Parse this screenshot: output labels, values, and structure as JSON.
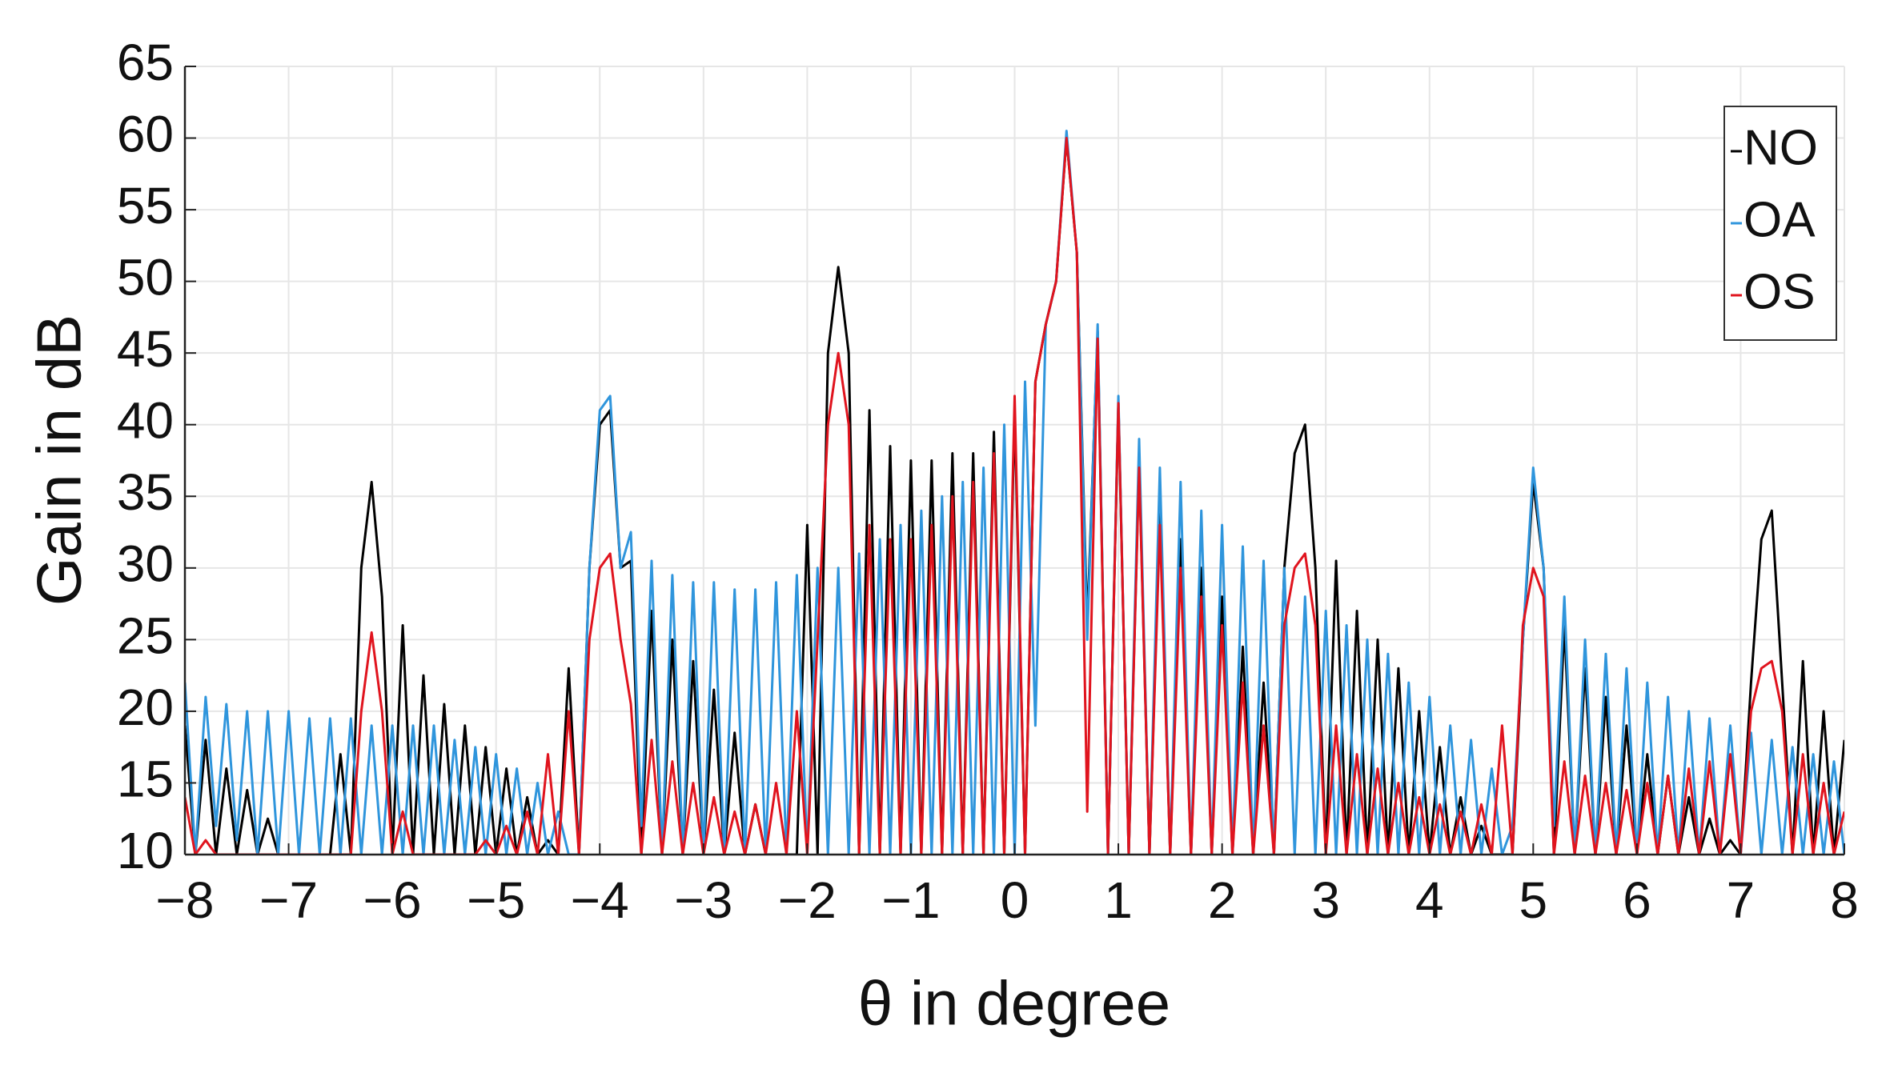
{
  "chart_data": {
    "type": "line",
    "xlabel": "θ in degree",
    "ylabel": "Gain in dB",
    "x": [
      -8.0,
      -7.9,
      -7.8,
      -7.7,
      -7.6,
      -7.5,
      -7.4,
      -7.3,
      -7.2,
      -7.1,
      -7.0,
      -6.9,
      -6.8,
      -6.7,
      -6.6,
      -6.5,
      -6.4,
      -6.3,
      -6.2,
      -6.1,
      -6.0,
      -5.9,
      -5.8,
      -5.7,
      -5.6,
      -5.5,
      -5.4,
      -5.3,
      -5.2,
      -5.1,
      -5.0,
      -4.9,
      -4.8,
      -4.7,
      -4.6,
      -4.5,
      -4.4,
      -4.3,
      -4.2,
      -4.1,
      -4.0,
      -3.9,
      -3.8,
      -3.7,
      -3.6,
      -3.5,
      -3.4,
      -3.3,
      -3.2,
      -3.1,
      -3.0,
      -2.9,
      -2.8,
      -2.7,
      -2.6,
      -2.5,
      -2.4,
      -2.3,
      -2.2,
      -2.1,
      -2.0,
      -1.9,
      -1.8,
      -1.7,
      -1.6,
      -1.5,
      -1.4,
      -1.3,
      -1.2,
      -1.1,
      -1.0,
      -0.9,
      -0.8,
      -0.7,
      -0.6,
      -0.5,
      -0.4,
      -0.3,
      -0.2,
      -0.1,
      0.0,
      0.1,
      0.2,
      0.3,
      0.4,
      0.5,
      0.6,
      0.7,
      0.8,
      0.9,
      1.0,
      1.1,
      1.2,
      1.3,
      1.4,
      1.5,
      1.6,
      1.7,
      1.8,
      1.9,
      2.0,
      2.1,
      2.2,
      2.3,
      2.4,
      2.5,
      2.6,
      2.7,
      2.8,
      2.9,
      3.0,
      3.1,
      3.2,
      3.3,
      3.4,
      3.5,
      3.6,
      3.7,
      3.8,
      3.9,
      4.0,
      4.1,
      4.2,
      4.3,
      4.4,
      4.5,
      4.6,
      4.7,
      4.8,
      4.9,
      5.0,
      5.1,
      5.2,
      5.3,
      5.4,
      5.5,
      5.6,
      5.7,
      5.8,
      5.9,
      6.0,
      6.1,
      6.2,
      6.3,
      6.4,
      6.5,
      6.6,
      6.7,
      6.8,
      6.9,
      7.0,
      7.1,
      7.2,
      7.3,
      7.4,
      7.5,
      7.6,
      7.7,
      7.8,
      7.9,
      8.0
    ],
    "series": [
      {
        "name": "NO",
        "color": "#000000",
        "values": [
          19,
          10,
          18,
          10,
          16,
          10,
          14.5,
          10,
          12.5,
          10,
          10,
          10,
          10,
          10,
          10,
          17,
          10,
          30,
          36,
          28,
          10,
          26,
          10,
          22.5,
          10,
          20.5,
          10,
          19,
          10,
          17.5,
          10,
          16,
          10,
          14,
          10,
          11,
          10,
          23,
          10,
          30,
          40,
          41,
          30,
          30.5,
          10,
          27,
          10,
          25,
          10,
          23.5,
          10,
          21.5,
          10,
          18.5,
          10,
          13.5,
          10,
          10,
          10,
          10,
          33,
          10,
          45,
          51,
          45,
          10,
          41,
          10,
          38.5,
          10,
          37.5,
          10,
          37.5,
          10,
          38,
          10,
          38,
          10,
          39.5,
          10,
          41,
          10,
          43,
          47,
          50,
          60,
          52,
          26,
          46.5,
          10,
          41.5,
          10,
          37.5,
          10,
          34,
          10,
          32,
          10,
          30,
          10,
          28,
          10,
          24.5,
          10,
          22,
          10,
          30,
          38,
          40,
          30,
          10,
          30.5,
          10,
          27,
          10,
          25,
          10,
          23,
          10,
          20,
          10,
          17.5,
          10,
          14,
          10,
          12,
          10,
          10,
          10,
          25,
          36,
          30,
          10,
          26,
          10,
          23,
          10,
          21,
          10,
          19,
          10,
          17,
          10,
          15.5,
          10,
          14,
          10,
          12.5,
          10,
          11,
          10,
          22,
          32,
          34,
          22,
          10,
          23.5,
          10,
          20,
          10,
          18
        ]
      },
      {
        "name": "OA",
        "color": "#2f95dc",
        "values": [
          22,
          10,
          21,
          12,
          20.5,
          11,
          20,
          10,
          20,
          10,
          20,
          10,
          19.5,
          10,
          19.5,
          10,
          19.5,
          10,
          19,
          10,
          19,
          10,
          19,
          10,
          19,
          10,
          18,
          10,
          17.5,
          10,
          17,
          10,
          16,
          10,
          15,
          10,
          13,
          10,
          10,
          30,
          41,
          42,
          30,
          32.5,
          12,
          30.5,
          10,
          29.5,
          10,
          29,
          10,
          29,
          10,
          28.5,
          10,
          28.5,
          10,
          29,
          10,
          29.5,
          10,
          30,
          10,
          30,
          10,
          31,
          10,
          32,
          10,
          33,
          10,
          34,
          10,
          35,
          10,
          36,
          10,
          37,
          10,
          40,
          10,
          43,
          19,
          47,
          50,
          60.5,
          52,
          25,
          47,
          10,
          42,
          10,
          39,
          10,
          37,
          10,
          36,
          10,
          34,
          10,
          33,
          10,
          31.5,
          10,
          30.5,
          10,
          30,
          10,
          28,
          10,
          27,
          10,
          26,
          10,
          25,
          10,
          24,
          10,
          22,
          10,
          21,
          10,
          19,
          10,
          18,
          10,
          16,
          10,
          12,
          25,
          37,
          30,
          12,
          28,
          10,
          25,
          10,
          24,
          10,
          23,
          10,
          22,
          10,
          21,
          10,
          20,
          10,
          19.5,
          10,
          19,
          10,
          18.5,
          10,
          18,
          10,
          17.5,
          10,
          17,
          10,
          16.5,
          10
        ]
      },
      {
        "name": "OS",
        "color": "#e0141e",
        "values": [
          14,
          10,
          11,
          10,
          10,
          10,
          10,
          10,
          10,
          10,
          10,
          10,
          10,
          10,
          10,
          10,
          10,
          20,
          25.5,
          20,
          10,
          13,
          10,
          10,
          10,
          10,
          10,
          10,
          10,
          11,
          10,
          12,
          10,
          13,
          10,
          17,
          10,
          20,
          10,
          25,
          30,
          31,
          25,
          20.5,
          10,
          18,
          10,
          16.5,
          10,
          15,
          10,
          14,
          10,
          13,
          10,
          13.5,
          10,
          15,
          10,
          20,
          10,
          25,
          40,
          45,
          40,
          10,
          33,
          10,
          32,
          10,
          32,
          10,
          33,
          10,
          35,
          10,
          36,
          10,
          38,
          10,
          42,
          10,
          43,
          47,
          50,
          60,
          52,
          13,
          46,
          10,
          41.5,
          10,
          37,
          10,
          33,
          10,
          30,
          10,
          28,
          10,
          26,
          10,
          22,
          10,
          19,
          10,
          26,
          30,
          31,
          26,
          10,
          19,
          10,
          17,
          10,
          16,
          10,
          15,
          10,
          14,
          10,
          13.5,
          10,
          13,
          10,
          13.5,
          10,
          19,
          10,
          26,
          30,
          28,
          10,
          16.5,
          10,
          15.5,
          10,
          15,
          10,
          14.5,
          10,
          15,
          10,
          15.5,
          10,
          16,
          10,
          16.5,
          10,
          17,
          10,
          20,
          23,
          23.5,
          20,
          10,
          17,
          10,
          15,
          10,
          13
        ]
      }
    ],
    "xlim": [
      -8,
      8
    ],
    "xticks": [
      {
        "value": -8,
        "label": "−8"
      },
      {
        "value": -7,
        "label": "−7"
      },
      {
        "value": -6,
        "label": "−6"
      },
      {
        "value": -5,
        "label": "−5"
      },
      {
        "value": -4,
        "label": "−4"
      },
      {
        "value": -3,
        "label": "−3"
      },
      {
        "value": -2,
        "label": "−2"
      },
      {
        "value": -1,
        "label": "−1"
      },
      0,
      1,
      2,
      3,
      4,
      5,
      6,
      7,
      8
    ],
    "ylim": [
      10,
      65
    ],
    "yticks": [
      10,
      15,
      20,
      25,
      30,
      35,
      40,
      45,
      50,
      55,
      60,
      65
    ],
    "grid": true,
    "legend": "northeast"
  }
}
